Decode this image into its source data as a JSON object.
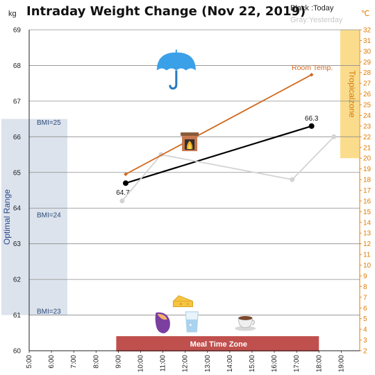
{
  "chart_data": {
    "type": "line",
    "title": "Intraday Weight Change (Nov 22, 2019)",
    "legend": {
      "today": "Black :Today",
      "yesterday": "Gray:Yesterday",
      "placement": "top-right"
    },
    "y_left": {
      "unit": "kg",
      "range": [
        60,
        69
      ],
      "ticks": [
        "60",
        "61",
        "62",
        "63",
        "64",
        "65",
        "66",
        "67",
        "68",
        "69"
      ]
    },
    "y_right": {
      "unit": "℃",
      "range": [
        2,
        32
      ],
      "ticks": [
        "2",
        "3",
        "4",
        "5",
        "6",
        "7",
        "8",
        "9",
        "10",
        "11",
        "12",
        "13",
        "14",
        "15",
        "16",
        "17",
        "18",
        "19",
        "20",
        "21",
        "22",
        "23",
        "24",
        "25",
        "26",
        "27",
        "28",
        "29",
        "30",
        "31",
        "32"
      ]
    },
    "x_axis": {
      "range_hours": [
        5,
        19.83
      ],
      "ticks": [
        "5:00",
        "6:00",
        "7:00",
        "8:00",
        "9:00",
        "10:00",
        "11:00",
        "12:00",
        "13:00",
        "14:00",
        "15:00",
        "16:00",
        "17:00",
        "18:00",
        "19:00"
      ]
    },
    "grid": true,
    "series": [
      {
        "name": "Black :Today",
        "color": "#000000",
        "points": [
          [
            9.33,
            64.7
          ],
          [
            17.67,
            66.3
          ]
        ],
        "point_labels": [
          "64.7",
          "66.3"
        ]
      },
      {
        "name": "Gray:Yesterday",
        "color": "#d3d3d3",
        "points": [
          [
            9.17,
            64.2
          ],
          [
            10.92,
            65.5
          ],
          [
            16.8,
            64.8
          ],
          [
            18.67,
            66.0
          ]
        ]
      },
      {
        "name": "Room Temp.",
        "axis": "right",
        "color": "#d2691e",
        "points": [
          [
            9.33,
            18.5
          ],
          [
            17.67,
            27.8
          ]
        ],
        "label": "Room Temp."
      }
    ],
    "zones": {
      "optimal": {
        "label": "Optimal Range",
        "kg_range": [
          61,
          66.5
        ],
        "color": "#dde3ec"
      },
      "tropical": {
        "label": "Tropicalzone",
        "c_range": [
          20,
          32
        ],
        "color": "#fadc8c"
      },
      "meal": {
        "label": "Meal Time Zone",
        "x_range": [
          9,
          18
        ],
        "color": "#c0504d"
      }
    },
    "bmi_lines": [
      {
        "label": "BMI=25",
        "kg": 66.4
      },
      {
        "label": "BMI=24",
        "kg": 63.8
      },
      {
        "label": "BMI=23",
        "kg": 61.1
      }
    ],
    "icons": [
      {
        "name": "umbrella-icon",
        "x": 11.6,
        "kg": 67.9
      },
      {
        "name": "fireplace-icon",
        "x": 12.2,
        "kg": 65.85
      },
      {
        "name": "cheese-icon",
        "x": 11.9,
        "kg": 61.35
      },
      {
        "name": "sweet-potato-icon",
        "x": 11.0,
        "kg": 60.8
      },
      {
        "name": "water-glass-icon",
        "x": 12.3,
        "kg": 60.8
      },
      {
        "name": "coffee-cup-icon",
        "x": 14.7,
        "kg": 60.8
      }
    ]
  }
}
